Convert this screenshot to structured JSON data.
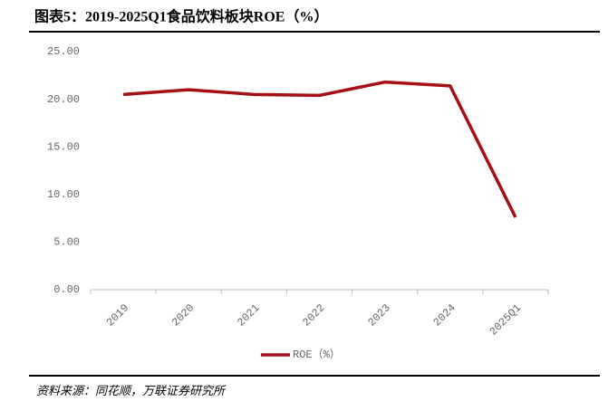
{
  "chart_data": {
    "type": "line",
    "title": "图表5：2019-2025Q1食品饮料板块ROE（%）",
    "categories": [
      "2019",
      "2020",
      "2021",
      "2022",
      "2023",
      "2024",
      "2025Q1"
    ],
    "series": [
      {
        "name": "ROE（%）",
        "color": "#a50f15",
        "values": [
          20.5,
          21.0,
          20.5,
          20.4,
          21.8,
          21.4,
          7.6
        ]
      }
    ],
    "ylim": [
      0,
      25
    ],
    "yticks": [
      {
        "value": 0,
        "label": "0.00"
      },
      {
        "value": 5,
        "label": "5.00"
      },
      {
        "value": 10,
        "label": "10.00"
      },
      {
        "value": 15,
        "label": "15.00"
      },
      {
        "value": 20,
        "label": "20.00"
      },
      {
        "value": 25,
        "label": "25.00"
      }
    ],
    "source": "资料来源：同花顺，万联证券研究所"
  }
}
